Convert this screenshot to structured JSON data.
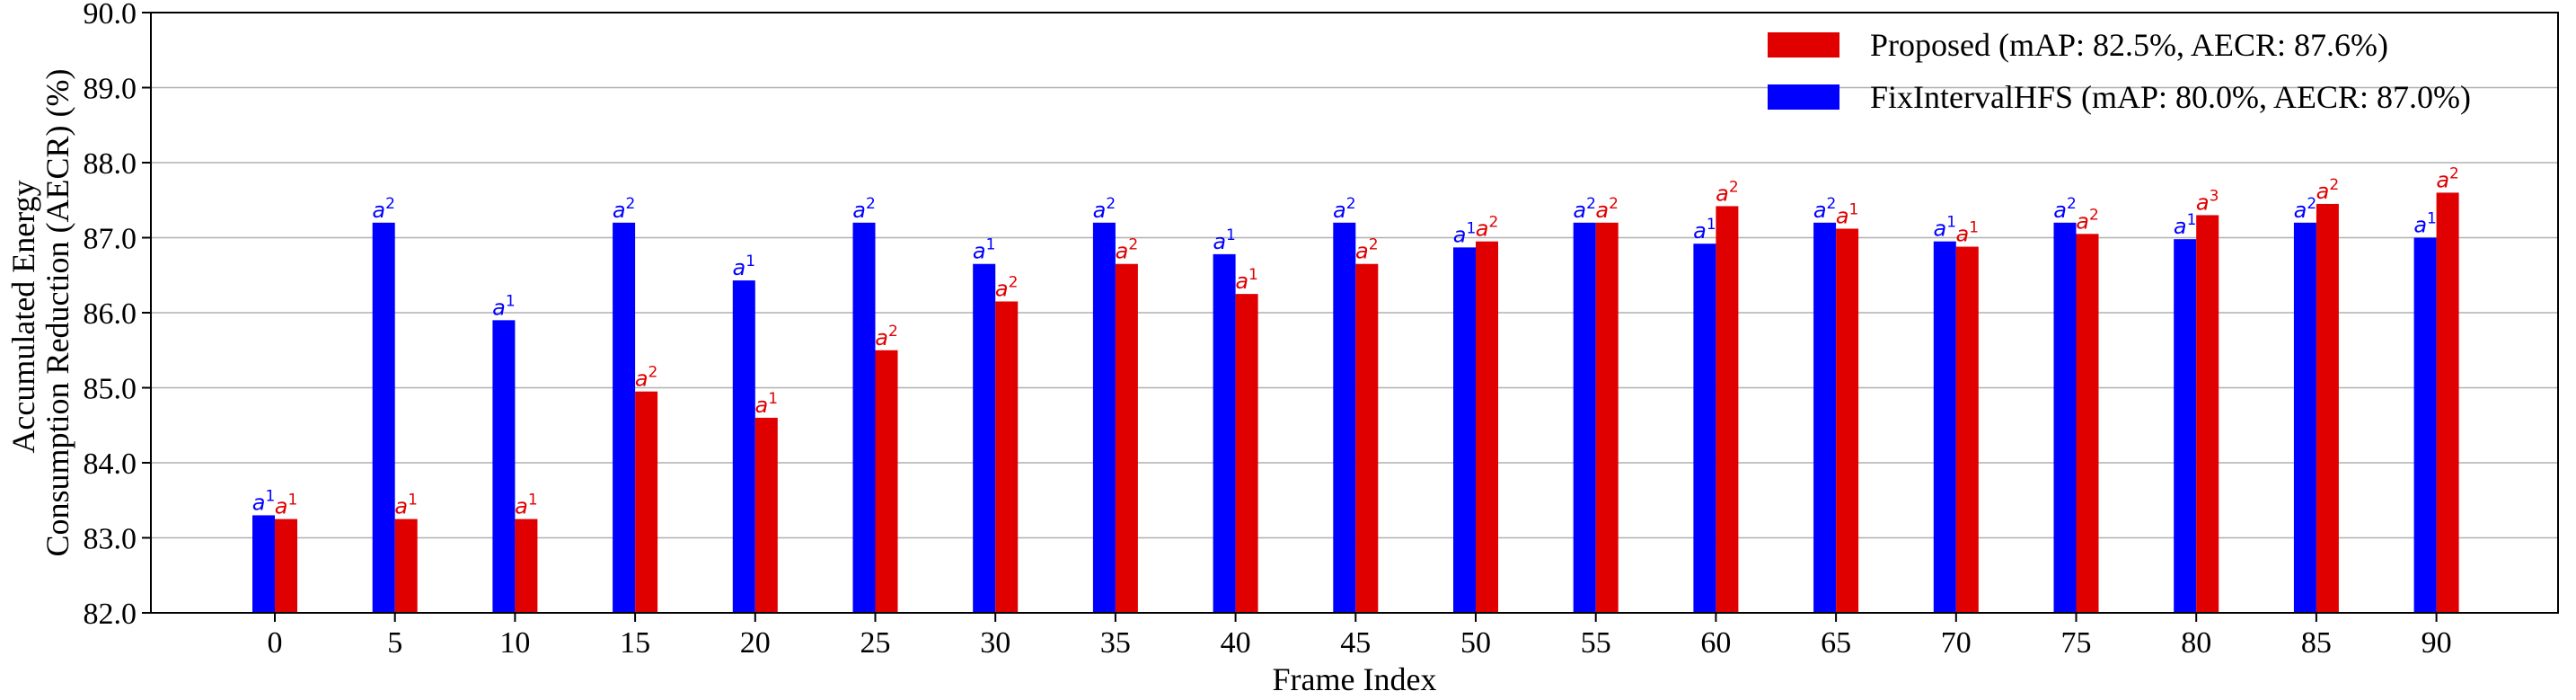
{
  "chart_data": {
    "type": "bar",
    "xlabel": "Frame Index",
    "ylabel_lines": [
      "Accumulated Energy",
      "Consumption Reduction (AECR) (%)"
    ],
    "ylim": [
      82.0,
      90.0
    ],
    "yticks": [
      "82.0",
      "83.0",
      "84.0",
      "85.0",
      "86.0",
      "87.0",
      "88.0",
      "89.0",
      "90.0"
    ],
    "categories": [
      "0",
      "5",
      "10",
      "15",
      "20",
      "25",
      "30",
      "35",
      "40",
      "45",
      "50",
      "55",
      "60",
      "65",
      "70",
      "75",
      "80",
      "85",
      "90"
    ],
    "grid": "horizontal",
    "legend_position": "top-right",
    "series": [
      {
        "name": "FixIntervalHFS (mAP: 80.0%, AECR: 87.0%)",
        "color": "#0000ff",
        "values": [
          83.3,
          87.2,
          85.9,
          87.2,
          86.43,
          87.2,
          86.65,
          87.2,
          86.78,
          87.2,
          86.87,
          87.2,
          86.92,
          87.2,
          86.95,
          87.2,
          86.98,
          87.2,
          87.0
        ],
        "labels": [
          "1",
          "2",
          "1",
          "2",
          "1",
          "2",
          "1",
          "2",
          "1",
          "2",
          "1",
          "2",
          "1",
          "2",
          "1",
          "2",
          "1",
          "2",
          "1"
        ]
      },
      {
        "name": "Proposed (mAP: 82.5%, AECR: 87.6%)",
        "color": "#e00000",
        "values": [
          83.25,
          83.25,
          83.25,
          84.95,
          84.6,
          85.5,
          86.15,
          86.65,
          86.25,
          86.65,
          86.95,
          87.2,
          87.42,
          87.12,
          86.88,
          87.05,
          87.3,
          87.45,
          87.6
        ],
        "labels": [
          "1",
          "1",
          "1",
          "2",
          "1",
          "2",
          "2",
          "2",
          "1",
          "2",
          "2",
          "2",
          "2",
          "1",
          "1",
          "2",
          "3",
          "2",
          "2"
        ]
      }
    ],
    "bar_label_prefix": "a",
    "legend_order": [
      1,
      0
    ]
  }
}
